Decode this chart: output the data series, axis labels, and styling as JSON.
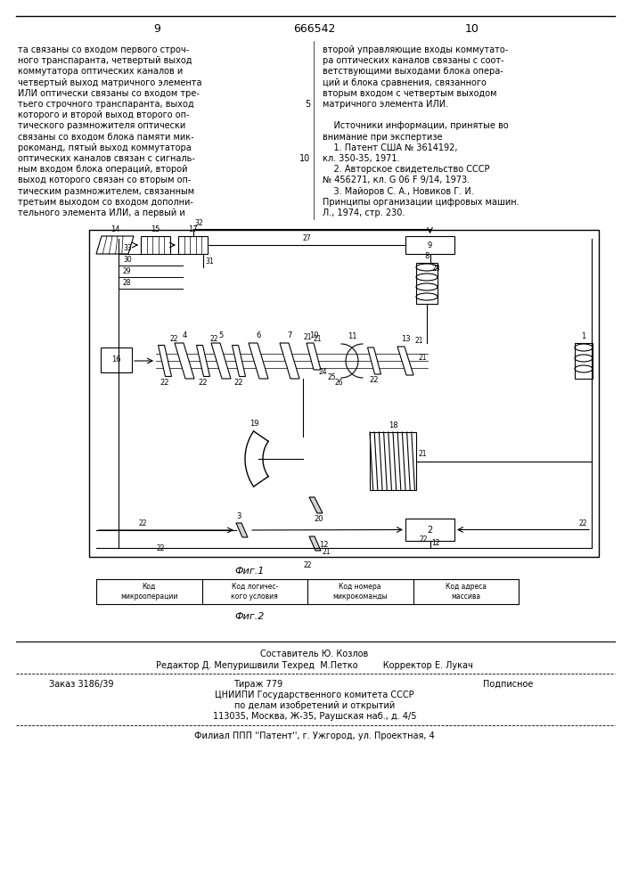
{
  "page_numbers": [
    "9",
    "666542",
    "10"
  ],
  "left_column_text": [
    "та связаны со входом первого строч-",
    "ного транспаранта, четвертый выход",
    "коммутатора оптических каналов и",
    "четвертый выход матричного элемента",
    "ИЛИ оптически связаны со входом тре-",
    "тьего строчного транспаранта, выход",
    "которого и второй выход второго оп-",
    "тического размножителя оптически",
    "связаны со входом блока памяти мик-",
    "рокоманд, пятый выход коммутатора",
    "оптических каналов связан с сигналь-",
    "ным входом блока операций, второй",
    "выход которого связан со вторым оп-",
    "тическим размножителем, связанным",
    "третьим выходом со входом дополни-",
    "тельного элемента ИЛИ, а первый и"
  ],
  "right_column_text_lines": [
    "второй управляющие входы коммутато-",
    "ра оптических каналов связаны с соот-",
    "ветствующими выходами блока опера-",
    "ций и блока сравнения, связанного",
    "вторым входом с четвертым выходом",
    "матричного элемента ИЛИ.",
    "",
    "    Источники информации, принятые во",
    "внимание при экспертизе",
    "    1. Патент США № 3614192,",
    "кл. 350-35, 1971.",
    "    2. Авторское свидетельство СССР",
    "№ 456271, кл. G 06 F 9/14, 1973.",
    "    3. Майоров С. А., Новиков Г. И.",
    "Принципы организации цифровых машин.",
    "Л., 1974, стр. 230."
  ],
  "right_col_line5_num": "5",
  "right_col_line10_num": "10",
  "fig1_label": "Фиг.1",
  "fig2_label": "Фиг.2",
  "fig2_cells": [
    "Код\nмикрооперации",
    "Код логичес-\nкого условия",
    "Код номера\nмикрокоманды",
    "Код адреса\nмассива"
  ],
  "footer_composer": "Составитель Ю. Козлов",
  "footer_editors": "Редактор Д. Мепуришвили Техред  М.Петко         Корректор Е. Лукач",
  "footer_order": "Заказ 3186/39",
  "footer_tirazh": "Тираж 779",
  "footer_podp": "Подписное",
  "footer_cniip1": "ЦНИИПИ Государственного комитета СССР",
  "footer_cniip2": "по делам изобретений и открытий",
  "footer_cniip3": "113035, Москва, Ж-35, Раушская наб., д. 4/5",
  "footer_filial": "Филиал ППП ''Патент'', г. Ужгород, ул. Проектная, 4",
  "bg_color": "#ffffff",
  "text_color": "#000000"
}
